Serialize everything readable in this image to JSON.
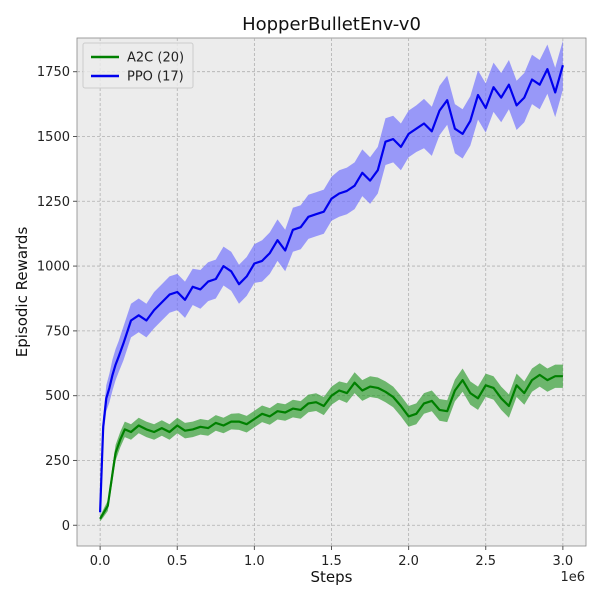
{
  "chart_data": {
    "type": "line",
    "title": "HopperBulletEnv-v0",
    "xlabel": "Steps",
    "ylabel": "Episodic Rewards",
    "x_offset_text": "1e6",
    "xlim": [
      -0.15,
      3.15
    ],
    "ylim": [
      -80,
      1880
    ],
    "x_ticks": [
      0.0,
      0.5,
      1.0,
      1.5,
      2.0,
      2.5,
      3.0
    ],
    "x_tick_labels": [
      "0.0",
      "0.5",
      "1.0",
      "1.5",
      "2.0",
      "2.5",
      "3.0"
    ],
    "y_ticks": [
      0,
      250,
      500,
      750,
      1000,
      1250,
      1500,
      1750
    ],
    "y_tick_labels": [
      "0",
      "250",
      "500",
      "750",
      "1000",
      "1250",
      "1500",
      "1750"
    ],
    "grid": true,
    "legend_position": "upper-left",
    "series": [
      {
        "name": "A2C (20)",
        "color": "#008000",
        "band_color": "#2a9a2a",
        "x": [
          0.0,
          0.02,
          0.05,
          0.08,
          0.1,
          0.13,
          0.16,
          0.2,
          0.25,
          0.3,
          0.35,
          0.4,
          0.45,
          0.5,
          0.55,
          0.6,
          0.65,
          0.7,
          0.75,
          0.8,
          0.85,
          0.9,
          0.95,
          1.0,
          1.05,
          1.1,
          1.15,
          1.2,
          1.25,
          1.3,
          1.35,
          1.4,
          1.45,
          1.5,
          1.55,
          1.6,
          1.65,
          1.7,
          1.75,
          1.8,
          1.85,
          1.9,
          1.95,
          2.0,
          2.05,
          2.1,
          2.15,
          2.2,
          2.25,
          2.3,
          2.35,
          2.4,
          2.45,
          2.5,
          2.55,
          2.6,
          2.65,
          2.7,
          2.75,
          2.8,
          2.85,
          2.9,
          2.95,
          3.0
        ],
        "mean": [
          25,
          45,
          75,
          200,
          280,
          330,
          370,
          360,
          385,
          370,
          360,
          375,
          360,
          385,
          365,
          370,
          380,
          375,
          395,
          385,
          400,
          400,
          390,
          410,
          430,
          420,
          440,
          435,
          450,
          445,
          470,
          475,
          460,
          500,
          520,
          510,
          550,
          520,
          535,
          530,
          515,
          495,
          460,
          420,
          430,
          470,
          480,
          445,
          440,
          520,
          560,
          510,
          490,
          540,
          530,
          490,
          460,
          540,
          510,
          560,
          580,
          560,
          575,
          575
        ],
        "spread": [
          10,
          15,
          20,
          30,
          30,
          30,
          30,
          30,
          30,
          30,
          30,
          30,
          30,
          30,
          30,
          30,
          30,
          30,
          30,
          30,
          30,
          32,
          32,
          32,
          32,
          32,
          32,
          32,
          34,
          34,
          34,
          34,
          35,
          35,
          35,
          38,
          40,
          40,
          40,
          40,
          40,
          40,
          40,
          40,
          40,
          40,
          40,
          42,
          42,
          42,
          45,
          45,
          45,
          45,
          45,
          45,
          45,
          45,
          45,
          45,
          45,
          45,
          45,
          45
        ]
      },
      {
        "name": "PPO (17)",
        "color": "#0000ee",
        "band_color": "#6b6bff",
        "x": [
          0.0,
          0.02,
          0.04,
          0.06,
          0.08,
          0.1,
          0.12,
          0.15,
          0.2,
          0.25,
          0.3,
          0.35,
          0.4,
          0.45,
          0.5,
          0.55,
          0.6,
          0.65,
          0.7,
          0.75,
          0.8,
          0.85,
          0.9,
          0.95,
          1.0,
          1.05,
          1.1,
          1.15,
          1.2,
          1.25,
          1.3,
          1.35,
          1.4,
          1.45,
          1.5,
          1.55,
          1.6,
          1.65,
          1.7,
          1.75,
          1.8,
          1.85,
          1.9,
          1.95,
          2.0,
          2.05,
          2.1,
          2.15,
          2.2,
          2.25,
          2.3,
          2.35,
          2.4,
          2.45,
          2.5,
          2.55,
          2.6,
          2.65,
          2.7,
          2.75,
          2.8,
          2.85,
          2.9,
          2.95,
          3.0
        ],
        "mean": [
          50,
          380,
          490,
          530,
          580,
          620,
          650,
          700,
          790,
          810,
          790,
          830,
          860,
          890,
          900,
          870,
          920,
          910,
          940,
          950,
          1000,
          980,
          930,
          960,
          1010,
          1020,
          1050,
          1100,
          1060,
          1140,
          1150,
          1190,
          1200,
          1210,
          1260,
          1280,
          1290,
          1310,
          1360,
          1330,
          1370,
          1480,
          1490,
          1460,
          1510,
          1530,
          1550,
          1520,
          1600,
          1640,
          1530,
          1510,
          1560,
          1660,
          1610,
          1690,
          1650,
          1700,
          1620,
          1650,
          1720,
          1700,
          1760,
          1670,
          1775
        ],
        "spread": [
          20,
          40,
          50,
          55,
          60,
          60,
          60,
          65,
          65,
          65,
          65,
          70,
          70,
          70,
          70,
          70,
          70,
          75,
          75,
          75,
          75,
          75,
          75,
          75,
          75,
          80,
          80,
          80,
          80,
          85,
          85,
          85,
          85,
          85,
          85,
          90,
          90,
          90,
          90,
          90,
          90,
          90,
          90,
          90,
          90,
          90,
          95,
          95,
          95,
          95,
          95,
          95,
          95,
          95,
          95,
          95,
          95,
          95,
          95,
          95,
          95,
          95,
          95,
          95,
          95
        ]
      }
    ]
  }
}
